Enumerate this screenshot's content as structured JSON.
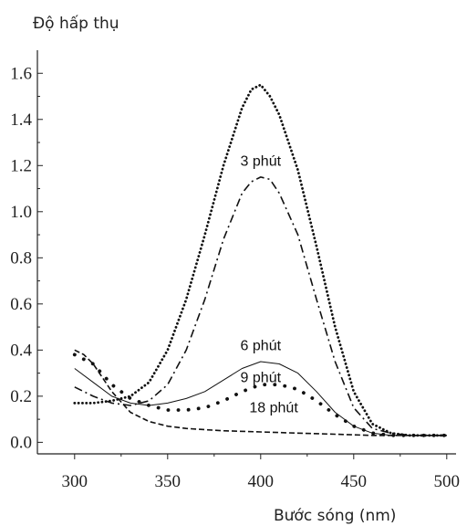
{
  "chart_data": {
    "type": "line",
    "ylabel": "Độ hấp thụ",
    "xlabel": "Bước sóng (nm)",
    "xlim": [
      280,
      505
    ],
    "ylim": [
      -0.05,
      1.7
    ],
    "xticks": [
      300,
      350,
      400,
      450,
      500
    ],
    "yticks": [
      0.0,
      0.2,
      0.4,
      0.6,
      0.8,
      1.0,
      1.2,
      1.4,
      1.6
    ],
    "ytick_labels": [
      "0.0",
      "0.2",
      "0.4",
      "0.6",
      "0.8",
      "1.0",
      "1.2",
      "1.4",
      "1.6"
    ],
    "grid": false,
    "series": [
      {
        "style": "dotted",
        "x": [
          300,
          310,
          320,
          330,
          340,
          350,
          360,
          370,
          380,
          390,
          395,
          400,
          405,
          410,
          420,
          430,
          440,
          450,
          460,
          470,
          480,
          490,
          500
        ],
        "y": [
          0.17,
          0.17,
          0.18,
          0.2,
          0.26,
          0.4,
          0.62,
          0.9,
          1.2,
          1.45,
          1.53,
          1.55,
          1.5,
          1.42,
          1.18,
          0.85,
          0.5,
          0.22,
          0.08,
          0.04,
          0.03,
          0.03,
          0.03
        ]
      },
      {
        "style": "dashdot",
        "x": [
          300,
          310,
          320,
          330,
          340,
          350,
          360,
          370,
          380,
          390,
          395,
          400,
          405,
          410,
          420,
          430,
          440,
          450,
          460,
          470,
          480,
          490,
          500
        ],
        "y": [
          0.24,
          0.2,
          0.17,
          0.16,
          0.18,
          0.25,
          0.4,
          0.62,
          0.88,
          1.08,
          1.13,
          1.15,
          1.14,
          1.08,
          0.9,
          0.62,
          0.35,
          0.15,
          0.06,
          0.04,
          0.03,
          0.03,
          0.03
        ]
      },
      {
        "style": "solid",
        "x": [
          300,
          310,
          320,
          330,
          340,
          350,
          360,
          370,
          380,
          390,
          400,
          410,
          420,
          430,
          440,
          450,
          460,
          470,
          480,
          490,
          500
        ],
        "y": [
          0.32,
          0.26,
          0.2,
          0.17,
          0.16,
          0.17,
          0.19,
          0.22,
          0.27,
          0.32,
          0.35,
          0.34,
          0.3,
          0.22,
          0.13,
          0.07,
          0.04,
          0.03,
          0.03,
          0.03,
          0.03
        ]
      },
      {
        "style": "sparse-dotted",
        "x": [
          300,
          310,
          320,
          330,
          340,
          350,
          360,
          370,
          380,
          390,
          400,
          410,
          420,
          430,
          440,
          450,
          460,
          470,
          480,
          490,
          500
        ],
        "y": [
          0.38,
          0.34,
          0.25,
          0.19,
          0.16,
          0.14,
          0.14,
          0.15,
          0.18,
          0.22,
          0.25,
          0.25,
          0.23,
          0.18,
          0.12,
          0.07,
          0.04,
          0.03,
          0.03,
          0.03,
          0.03
        ]
      },
      {
        "style": "dashed",
        "x": [
          300,
          305,
          310,
          320,
          330,
          340,
          350,
          360,
          370,
          380,
          400,
          420,
          440,
          460,
          480,
          500
        ],
        "y": [
          0.4,
          0.38,
          0.34,
          0.22,
          0.13,
          0.09,
          0.07,
          0.06,
          0.055,
          0.05,
          0.045,
          0.04,
          0.035,
          0.03,
          0.03,
          0.03
        ]
      }
    ],
    "annotations": [
      {
        "text": "3 phút",
        "x": 400,
        "y": 1.2
      },
      {
        "text": "6 phút",
        "x": 400,
        "y": 0.4
      },
      {
        "text": "9 phút",
        "x": 400,
        "y": 0.26
      },
      {
        "text": "18 phút",
        "x": 407,
        "y": 0.13
      }
    ]
  }
}
